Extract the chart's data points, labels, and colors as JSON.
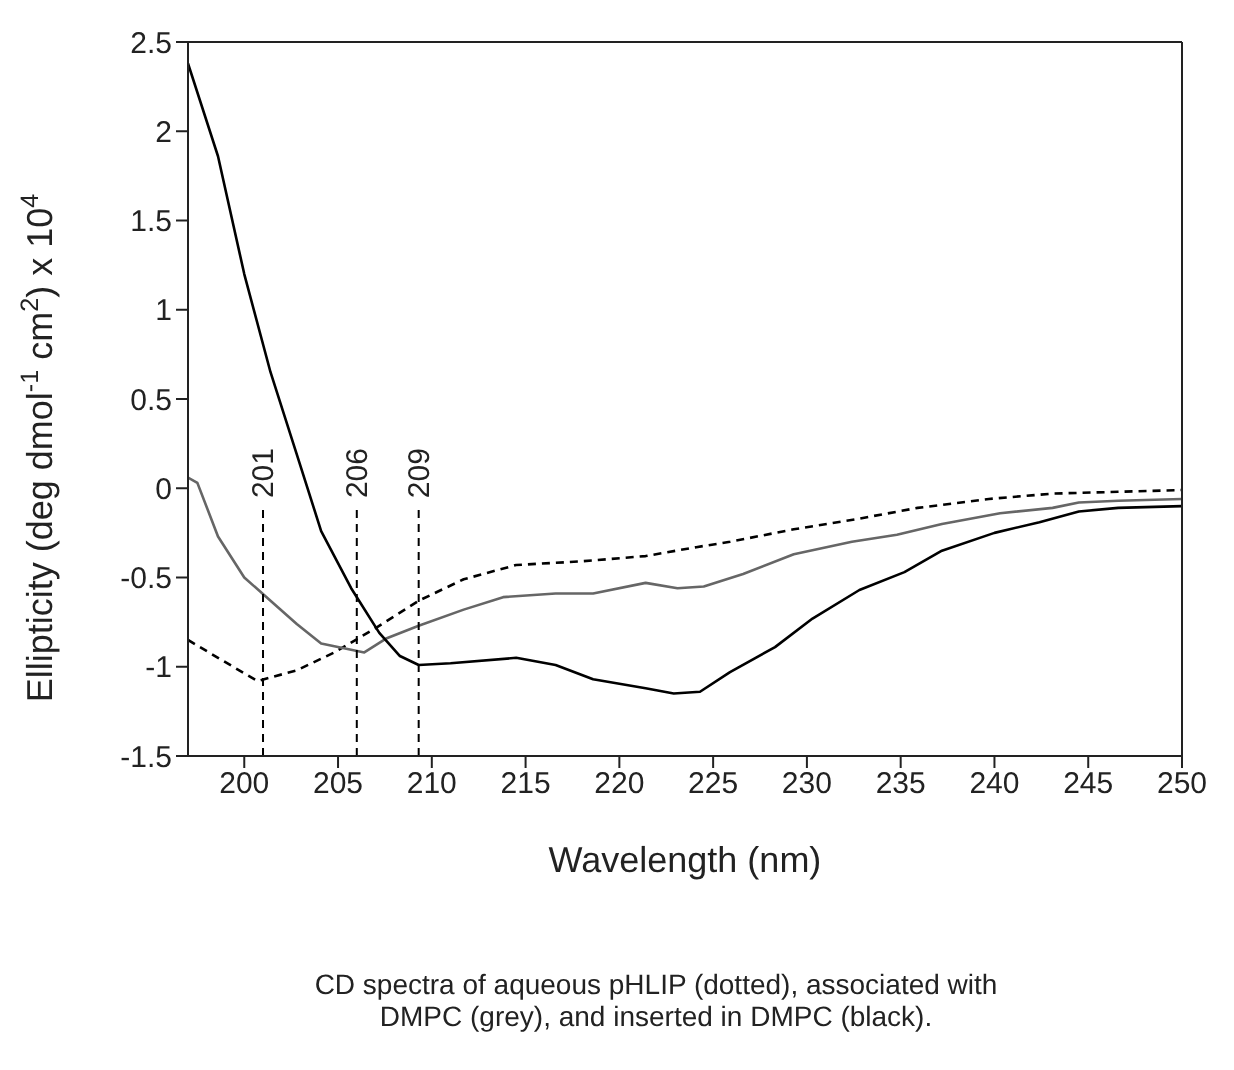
{
  "chart_data": {
    "type": "line",
    "xlabel": "Wavelength (nm)",
    "ylabel": "Ellipticity (deg dmol$^{-1}$ cm$^{2}$) x 10$^{4}$",
    "annotations": [
      "CD spectra of aqueous pHLIP (dotted), associated with DMPC (grey), and inserted in DMPC (black)."
    ],
    "xlim": [
      197,
      250
    ],
    "xticks": [
      200,
      205,
      210,
      215,
      220,
      225,
      230,
      235,
      240,
      245,
      250
    ],
    "ylim": [
      -1.5,
      2.5
    ],
    "yticks": [
      -1.5,
      -1,
      -0.5,
      0,
      0.5,
      1,
      1.5,
      2,
      2.5
    ],
    "marker": "none",
    "series": [
      {
        "color": "#000000",
        "line_style": "dashed",
        "x": [
          197,
          198.6,
          200.7,
          202.8,
          204.8,
          206.9,
          209.3,
          211.7,
          214.5,
          217.9,
          221.4,
          224.1,
          225.9,
          229.3,
          232.8,
          235.9,
          239.7,
          243.1,
          246.6,
          250
        ],
        "values": [
          -0.85,
          -0.95,
          -1.08,
          -1.02,
          -0.92,
          -0.79,
          -0.63,
          -0.51,
          -0.43,
          -0.41,
          -0.38,
          -0.33,
          -0.3,
          -0.23,
          -0.17,
          -0.11,
          -0.06,
          -0.03,
          -0.02,
          -0.01
        ]
      },
      {
        "color": "#666666",
        "line_style": "solid",
        "x": [
          197,
          197.5,
          198.6,
          200,
          201.4,
          202.8,
          204.1,
          206.4,
          207.6,
          209.3,
          211.7,
          213.8,
          216.6,
          218.6,
          221.4,
          223.1,
          224.5,
          226.6,
          229.3,
          232.4,
          234.8,
          237.2,
          240.3,
          243.1,
          244.5,
          246.6,
          250
        ],
        "values": [
          0.06,
          0.03,
          -0.27,
          -0.5,
          -0.63,
          -0.76,
          -0.87,
          -0.92,
          -0.84,
          -0.77,
          -0.68,
          -0.61,
          -0.59,
          -0.59,
          -0.53,
          -0.56,
          -0.55,
          -0.48,
          -0.37,
          -0.3,
          -0.26,
          -0.2,
          -0.14,
          -0.11,
          -0.08,
          -0.07,
          -0.06
        ]
      },
      {
        "color": "#000000",
        "line_style": "solid",
        "x": [
          197,
          198.6,
          200,
          201.4,
          202.8,
          204.1,
          205.7,
          207.2,
          208.3,
          209.3,
          211,
          214.5,
          216.6,
          218.6,
          221.4,
          222.9,
          224.3,
          225.9,
          228.3,
          230.3,
          232.8,
          235.2,
          237.2,
          240,
          242.4,
          244.5,
          246.6,
          250
        ],
        "values": [
          2.38,
          1.86,
          1.2,
          0.65,
          0.19,
          -0.24,
          -0.56,
          -0.81,
          -0.94,
          -0.99,
          -0.98,
          -0.95,
          -0.99,
          -1.07,
          -1.12,
          -1.15,
          -1.14,
          -1.03,
          -0.89,
          -0.73,
          -0.57,
          -0.47,
          -0.35,
          -0.25,
          -0.19,
          -0.13,
          -0.11,
          -0.1
        ]
      }
    ],
    "ref_lines": [
      {
        "axis": "x",
        "value": 201,
        "label": "201",
        "line_style": "dashed"
      },
      {
        "axis": "x",
        "value": 206,
        "label": "206",
        "line_style": "dashed"
      },
      {
        "axis": "x",
        "value": 209.3,
        "label": "209",
        "line_style": "dashed"
      }
    ]
  }
}
